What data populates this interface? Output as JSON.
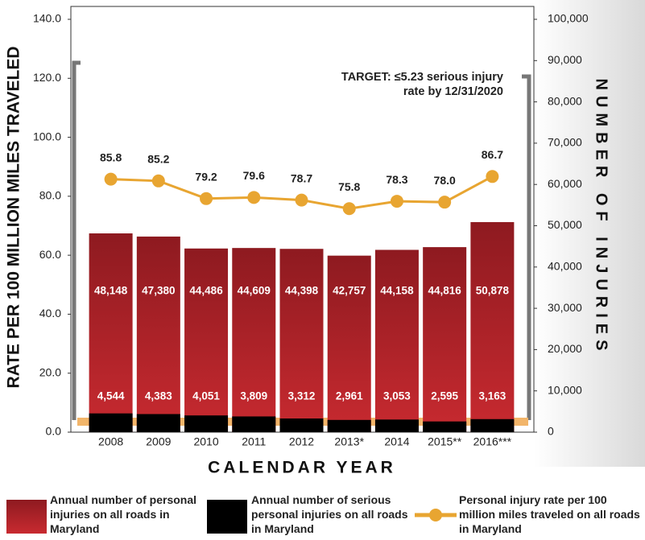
{
  "chart_data": {
    "type": "bar",
    "annotation": "TARGET: ≤5.23 serious injury rate by 12/31/2020",
    "x_label": "CALENDAR YEAR",
    "y_label": "RATE PER 100 MILLION MILES TRAVELED",
    "y2_label": "NUMBER OF INJURIES",
    "categories": [
      "2008",
      "2009",
      "2010",
      "2011",
      "2012",
      "2013*",
      "2014",
      "2015**",
      "2016***"
    ],
    "ylim": [
      0,
      140
    ],
    "yticks": [
      {
        "value": 0,
        "label": "0.0"
      },
      {
        "value": 20,
        "label": "20.0"
      },
      {
        "value": 40,
        "label": "40.0"
      },
      {
        "value": 60,
        "label": "60.0"
      },
      {
        "value": 80,
        "label": "80.0"
      },
      {
        "value": 100,
        "label": "100.0"
      },
      {
        "value": 120,
        "label": "120.0"
      },
      {
        "value": 140,
        "label": "140.0"
      }
    ],
    "y2lim": [
      0,
      100000
    ],
    "y2ticks": [
      0,
      {
        "value": 10000,
        "label": "10,000"
      },
      {
        "value": 20000,
        "label": "20,000"
      },
      {
        "value": 30000,
        "label": "30,000"
      },
      {
        "value": 40000,
        "label": "40,000"
      },
      {
        "value": 50000,
        "label": "50,000"
      },
      {
        "value": 60000,
        "label": "60,000"
      },
      {
        "value": 70000,
        "label": "70,000"
      },
      {
        "value": 80000,
        "label": "80,000"
      },
      {
        "value": 90000,
        "label": "90,000"
      },
      {
        "value": 100000,
        "label": "100,000"
      }
    ],
    "series": [
      {
        "name": "Annual number of personal injuries on all roads in Maryland",
        "type": "bar",
        "axis": "y2",
        "color": "#b3202a",
        "values": [
          48148,
          47380,
          44486,
          44609,
          44398,
          42757,
          44158,
          44816,
          50878
        ],
        "value_labels": [
          "48,148",
          "47,380",
          "44,486",
          "44,609",
          "44,398",
          "42,757",
          "44,158",
          "44,816",
          "50,878"
        ]
      },
      {
        "name": "Annual number of serious personal injuries on all roads in Maryland",
        "type": "bar",
        "axis": "y2",
        "color": "#000000",
        "values": [
          4544,
          4383,
          4051,
          3809,
          3312,
          2961,
          3053,
          2595,
          3163
        ],
        "value_labels": [
          "4,544",
          "4,383",
          "4,051",
          "3,809",
          "3,312",
          "2,961",
          "3,053",
          "2,595",
          "3,163"
        ]
      },
      {
        "name": "Personal injury rate per 100 million miles traveled on all roads in Maryland",
        "type": "line",
        "color": "#e8a531",
        "values": [
          85.8,
          85.2,
          79.2,
          79.6,
          78.7,
          75.8,
          78.3,
          78.0,
          86.7
        ],
        "value_labels": [
          "85.8",
          "85.2",
          "79.2",
          "79.6",
          "78.7",
          "75.8",
          "78.3",
          "78.0",
          "86.7"
        ]
      }
    ]
  }
}
